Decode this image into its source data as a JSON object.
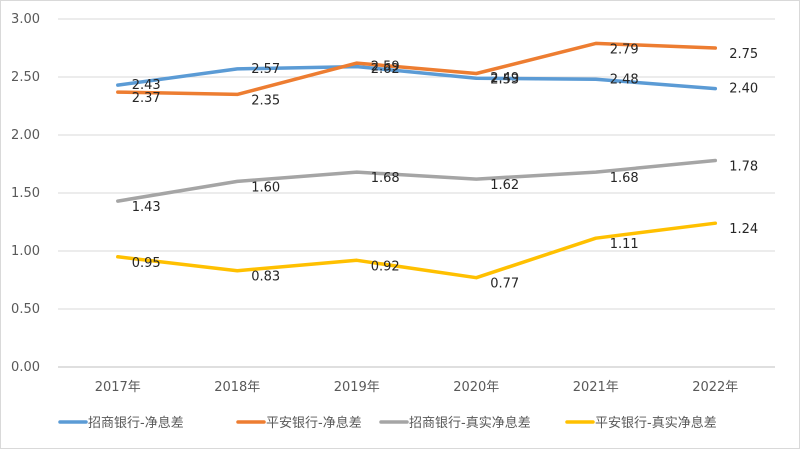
{
  "chart_data": {
    "type": "line",
    "title": "",
    "xlabel": "",
    "ylabel": "",
    "categories": [
      "2017年",
      "2018年",
      "2019年",
      "2020年",
      "2021年",
      "2022年"
    ],
    "ylim": [
      0,
      3
    ],
    "yticks": [
      "0.00",
      "0.50",
      "1.00",
      "1.50",
      "2.00",
      "2.50",
      "3.00"
    ],
    "grid": "horizontal",
    "legend_position": "bottom",
    "series": [
      {
        "name": "招商银行-净息差",
        "color": "#5b9bd5",
        "values": [
          2.43,
          2.57,
          2.59,
          2.49,
          2.48,
          2.4
        ],
        "labels": [
          "2.43",
          "2.57",
          "2.59",
          "2.49",
          "2.48",
          "2.40"
        ]
      },
      {
        "name": "平安银行-净息差",
        "color": "#ed7d31",
        "values": [
          2.37,
          2.35,
          2.62,
          2.53,
          2.79,
          2.75
        ],
        "labels": [
          "2.37",
          "2.35",
          "2.62",
          "2.53",
          "2.79",
          "2.75"
        ]
      },
      {
        "name": "招商银行-真实净息差",
        "color": "#a5a5a5",
        "values": [
          1.43,
          1.6,
          1.68,
          1.62,
          1.68,
          1.78
        ],
        "labels": [
          "1.43",
          "1.60",
          "1.68",
          "1.62",
          "1.68",
          "1.78"
        ]
      },
      {
        "name": "平安银行-真实净息差",
        "color": "#ffc000",
        "values": [
          0.95,
          0.83,
          0.92,
          0.77,
          1.11,
          1.24
        ],
        "labels": [
          "0.95",
          "0.83",
          "0.92",
          "0.77",
          "1.11",
          "1.24"
        ]
      }
    ]
  }
}
